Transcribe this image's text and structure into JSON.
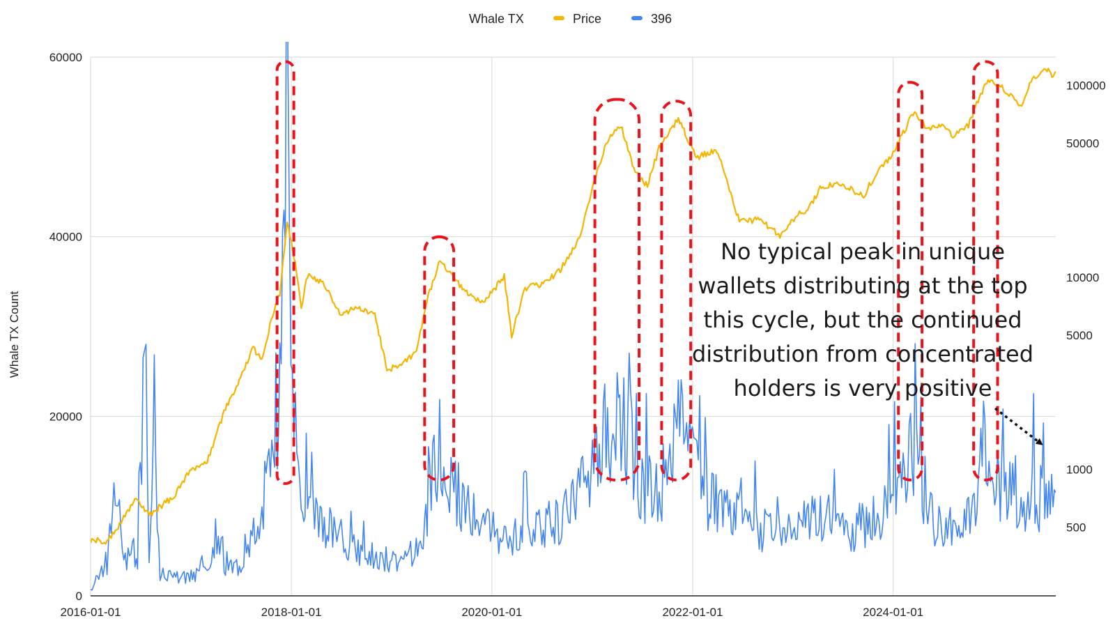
{
  "chart_data": {
    "type": "line",
    "title": "",
    "legend": {
      "placement": "top-center",
      "title": "Whale TX",
      "entries": [
        {
          "name": "Price",
          "color": "#F4B400"
        },
        {
          "name": "396",
          "color": "#4285F4"
        }
      ]
    },
    "ylabel": "Whale TX Count",
    "xlabel": "",
    "x_ticks": [
      "2016-01-01",
      "2018-01-01",
      "2020-01-01",
      "2022-01-01",
      "2024-01-01"
    ],
    "x_range": [
      "2016-01-01",
      "2025-08-15"
    ],
    "y_left": {
      "range": [
        0,
        60000
      ],
      "ticks": [
        "0",
        "20000",
        "40000",
        "60000"
      ]
    },
    "y_right": {
      "scale": "log",
      "range": [
        220,
        140000
      ],
      "ticks": [
        "500",
        "1000",
        "5000",
        "10000",
        "50000",
        "100000"
      ]
    },
    "grid": true,
    "series": [
      {
        "name": "396",
        "axis": "left",
        "color": "#4285F4",
        "points": [
          [
            "2016-01-01",
            800
          ],
          [
            "2016-03-01",
            3500
          ],
          [
            "2016-04-15",
            14000
          ],
          [
            "2016-05-01",
            3000
          ],
          [
            "2016-06-01",
            6500
          ],
          [
            "2016-06-20",
            2500
          ],
          [
            "2016-07-15",
            30000
          ],
          [
            "2016-08-01",
            3000
          ],
          [
            "2016-08-20",
            20000
          ],
          [
            "2016-09-10",
            2500
          ],
          [
            "2016-11-01",
            2000
          ],
          [
            "2017-01-01",
            2200
          ],
          [
            "2017-03-01",
            2500
          ],
          [
            "2017-04-10",
            7000
          ],
          [
            "2017-05-01",
            3000
          ],
          [
            "2017-07-01",
            3000
          ],
          [
            "2017-08-01",
            5000
          ],
          [
            "2017-09-01",
            9000
          ],
          [
            "2017-10-01",
            12000
          ],
          [
            "2017-11-01",
            16000
          ],
          [
            "2017-11-20",
            22000
          ],
          [
            "2017-12-05",
            41000
          ],
          [
            "2017-12-15",
            60000
          ],
          [
            "2017-12-25",
            45000
          ],
          [
            "2018-01-10",
            20000
          ],
          [
            "2018-02-01",
            15000
          ],
          [
            "2018-03-01",
            10000
          ],
          [
            "2018-05-01",
            8000
          ],
          [
            "2018-07-01",
            6000
          ],
          [
            "2018-09-01",
            5000
          ],
          [
            "2018-11-01",
            4500
          ],
          [
            "2019-01-01",
            4000
          ],
          [
            "2019-03-01",
            4000
          ],
          [
            "2019-05-01",
            7000
          ],
          [
            "2019-05-20",
            12000
          ],
          [
            "2019-06-15",
            15000
          ],
          [
            "2019-07-15",
            14000
          ],
          [
            "2019-09-01",
            11000
          ],
          [
            "2019-11-01",
            9000
          ],
          [
            "2020-01-01",
            7000
          ],
          [
            "2020-03-01",
            6000
          ],
          [
            "2020-05-01",
            7000
          ],
          [
            "2020-07-01",
            7500
          ],
          [
            "2020-09-01",
            8500
          ],
          [
            "2020-11-01",
            10500
          ],
          [
            "2021-01-01",
            13000
          ],
          [
            "2021-02-15",
            18000
          ],
          [
            "2021-04-01",
            19500
          ],
          [
            "2021-05-15",
            17000
          ],
          [
            "2021-07-01",
            12000
          ],
          [
            "2021-09-01",
            12000
          ],
          [
            "2021-10-15",
            15000
          ],
          [
            "2021-11-15",
            18500
          ],
          [
            "2021-12-15",
            16000
          ],
          [
            "2022-02-01",
            12000
          ],
          [
            "2022-04-01",
            10000
          ],
          [
            "2022-06-01",
            9000
          ],
          [
            "2022-08-01",
            8000
          ],
          [
            "2022-10-01",
            7000
          ],
          [
            "2022-12-01",
            7500
          ],
          [
            "2023-02-01",
            8000
          ],
          [
            "2023-04-01",
            8500
          ],
          [
            "2023-06-01",
            8000
          ],
          [
            "2023-08-01",
            7500
          ],
          [
            "2023-10-01",
            8000
          ],
          [
            "2023-12-01",
            9500
          ],
          [
            "2024-02-01",
            12000
          ],
          [
            "2024-03-10",
            17000
          ],
          [
            "2024-04-01",
            13000
          ],
          [
            "2024-05-01",
            9000
          ],
          [
            "2024-07-01",
            7500
          ],
          [
            "2024-09-01",
            7500
          ],
          [
            "2024-11-01",
            10000
          ],
          [
            "2024-11-25",
            18000
          ],
          [
            "2024-12-15",
            16000
          ],
          [
            "2025-01-15",
            12000
          ],
          [
            "2025-03-01",
            10000
          ],
          [
            "2025-05-01",
            10500
          ],
          [
            "2025-07-01",
            11000
          ],
          [
            "2025-08-15",
            11500
          ]
        ]
      },
      {
        "name": "Price",
        "axis": "right",
        "color": "#F4B400",
        "points": [
          [
            "2016-01-01",
            430
          ],
          [
            "2016-03-01",
            420
          ],
          [
            "2016-06-15",
            700
          ],
          [
            "2016-08-01",
            580
          ],
          [
            "2016-11-01",
            730
          ],
          [
            "2017-01-01",
            1000
          ],
          [
            "2017-03-01",
            1100
          ],
          [
            "2017-05-01",
            2000
          ],
          [
            "2017-06-15",
            2700
          ],
          [
            "2017-08-15",
            4300
          ],
          [
            "2017-09-15",
            3700
          ],
          [
            "2017-10-20",
            6000
          ],
          [
            "2017-11-20",
            8200
          ],
          [
            "2017-12-17",
            19000
          ],
          [
            "2018-01-15",
            12000
          ],
          [
            "2018-02-06",
            7000
          ],
          [
            "2018-03-01",
            10300
          ],
          [
            "2018-05-01",
            9200
          ],
          [
            "2018-07-01",
            6400
          ],
          [
            "2018-09-01",
            7000
          ],
          [
            "2018-11-01",
            6300
          ],
          [
            "2018-12-15",
            3300
          ],
          [
            "2019-02-01",
            3500
          ],
          [
            "2019-04-01",
            4100
          ],
          [
            "2019-05-15",
            8000
          ],
          [
            "2019-06-26",
            12500
          ],
          [
            "2019-08-01",
            10500
          ],
          [
            "2019-10-01",
            8300
          ],
          [
            "2019-12-01",
            7300
          ],
          [
            "2020-02-15",
            10200
          ],
          [
            "2020-03-13",
            5000
          ],
          [
            "2020-05-01",
            8800
          ],
          [
            "2020-07-01",
            9200
          ],
          [
            "2020-09-01",
            10700
          ],
          [
            "2020-11-15",
            16000
          ],
          [
            "2021-01-01",
            29000
          ],
          [
            "2021-02-20",
            50000
          ],
          [
            "2021-04-14",
            62000
          ],
          [
            "2021-06-01",
            36000
          ],
          [
            "2021-07-20",
            30000
          ],
          [
            "2021-09-01",
            47000
          ],
          [
            "2021-11-10",
            67000
          ],
          [
            "2022-01-15",
            42000
          ],
          [
            "2022-03-30",
            46000
          ],
          [
            "2022-05-15",
            29000
          ],
          [
            "2022-06-20",
            19500
          ],
          [
            "2022-09-01",
            20000
          ],
          [
            "2022-11-15",
            16500
          ],
          [
            "2023-01-15",
            21000
          ],
          [
            "2023-03-01",
            23000
          ],
          [
            "2023-04-15",
            30000
          ],
          [
            "2023-07-01",
            30500
          ],
          [
            "2023-09-15",
            26500
          ],
          [
            "2023-11-01",
            35000
          ],
          [
            "2024-01-01",
            44000
          ],
          [
            "2024-03-14",
            72000
          ],
          [
            "2024-05-01",
            60000
          ],
          [
            "2024-07-01",
            61000
          ],
          [
            "2024-08-05",
            54000
          ],
          [
            "2024-10-01",
            62000
          ],
          [
            "2024-11-15",
            91000
          ],
          [
            "2024-12-17",
            106000
          ],
          [
            "2025-02-01",
            98000
          ],
          [
            "2025-04-08",
            77000
          ],
          [
            "2025-05-22",
            110000
          ],
          [
            "2025-07-14",
            120000
          ],
          [
            "2025-08-01",
            113000
          ],
          [
            "2025-08-15",
            118000
          ]
        ]
      }
    ],
    "highlights": [
      {
        "from": "2017-11-10",
        "to": "2018-01-10",
        "axis": "left",
        "y_from": 12500,
        "y_to": 59500
      },
      {
        "from": "2019-05-01",
        "to": "2019-08-15",
        "axis": "left",
        "y_from": 12900,
        "y_to": 40000
      },
      {
        "from": "2021-01-10",
        "to": "2021-06-20",
        "axis": "left",
        "y_from": 12900,
        "y_to": 55300
      },
      {
        "from": "2021-09-10",
        "to": "2021-12-25",
        "axis": "left",
        "y_from": 12900,
        "y_to": 55100
      },
      {
        "from": "2024-01-20",
        "to": "2024-04-15",
        "axis": "left",
        "y_from": 12900,
        "y_to": 57200
      },
      {
        "from": "2024-10-20",
        "to": "2025-01-15",
        "axis": "left",
        "y_from": 12900,
        "y_to": 59500
      }
    ],
    "annotations": [
      {
        "lines": [
          "No typical peak in unique",
          "wallets distributing at the top",
          "this cycle, but the continued",
          "distribution from concentrated",
          "holders is very positive"
        ],
        "arrow_target": [
          "2025-08-01",
          16500
        ]
      }
    ]
  }
}
